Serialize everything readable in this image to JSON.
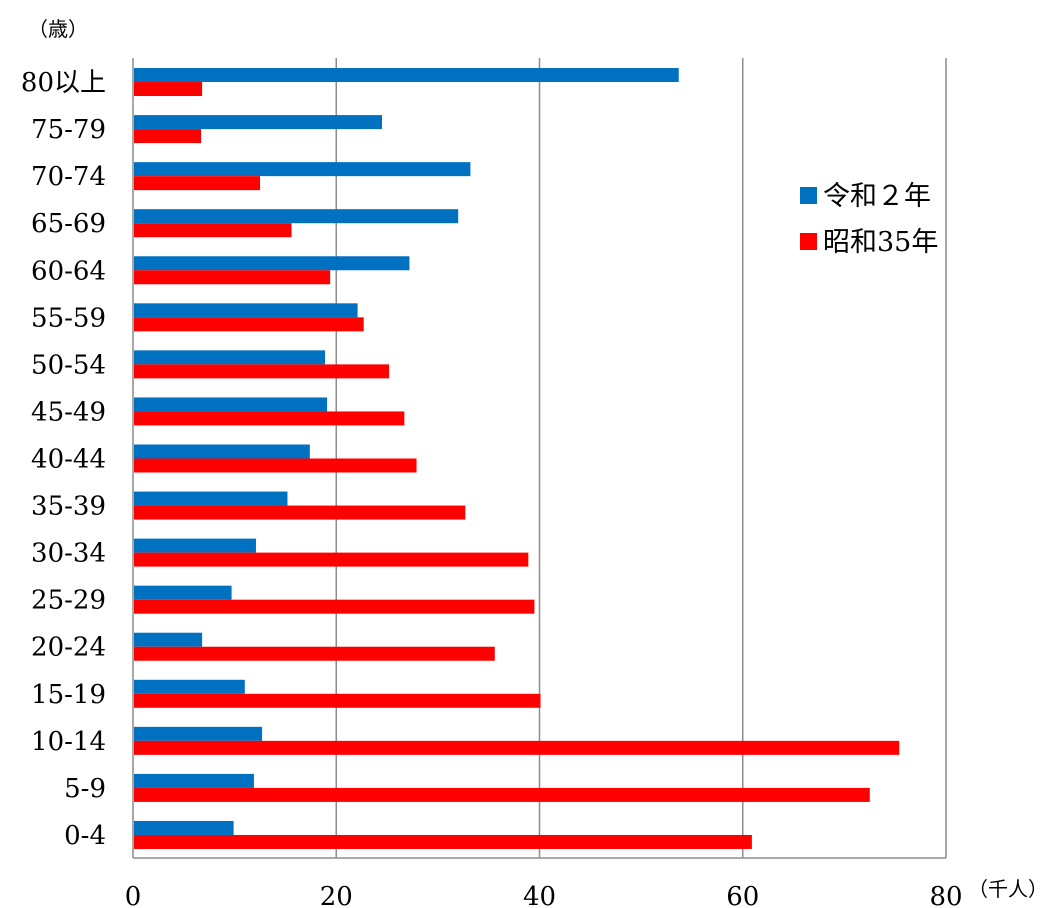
{
  "chart_data": {
    "type": "bar",
    "orientation": "horizontal",
    "y_unit_label": "（歳）",
    "x_unit_label": "（千人）",
    "xlim": [
      0,
      80
    ],
    "x_ticks": [
      "0",
      "20",
      "40",
      "60",
      "80"
    ],
    "grid": "vertical",
    "legend_position": "right",
    "categories": [
      "80以上",
      "75-79",
      "70-74",
      "65-69",
      "60-64",
      "55-59",
      "50-54",
      "45-49",
      "40-44",
      "35-39",
      "30-34",
      "25-29",
      "20-24",
      "15-19",
      "10-14",
      "5-9",
      "0-4"
    ],
    "series": [
      {
        "name": "令和２年",
        "color": "#0070C0",
        "values": [
          53.7,
          24.5,
          33.2,
          32.0,
          27.2,
          22.1,
          18.9,
          19.1,
          17.4,
          15.2,
          12.1,
          9.7,
          6.8,
          11.0,
          12.7,
          11.9,
          9.9
        ]
      },
      {
        "name": "昭和35年",
        "color": "#FF0000",
        "values": [
          6.8,
          6.7,
          12.5,
          15.6,
          19.4,
          22.7,
          25.2,
          26.7,
          27.9,
          32.7,
          38.9,
          39.5,
          35.6,
          40.1,
          75.4,
          72.5,
          60.9
        ]
      }
    ]
  }
}
